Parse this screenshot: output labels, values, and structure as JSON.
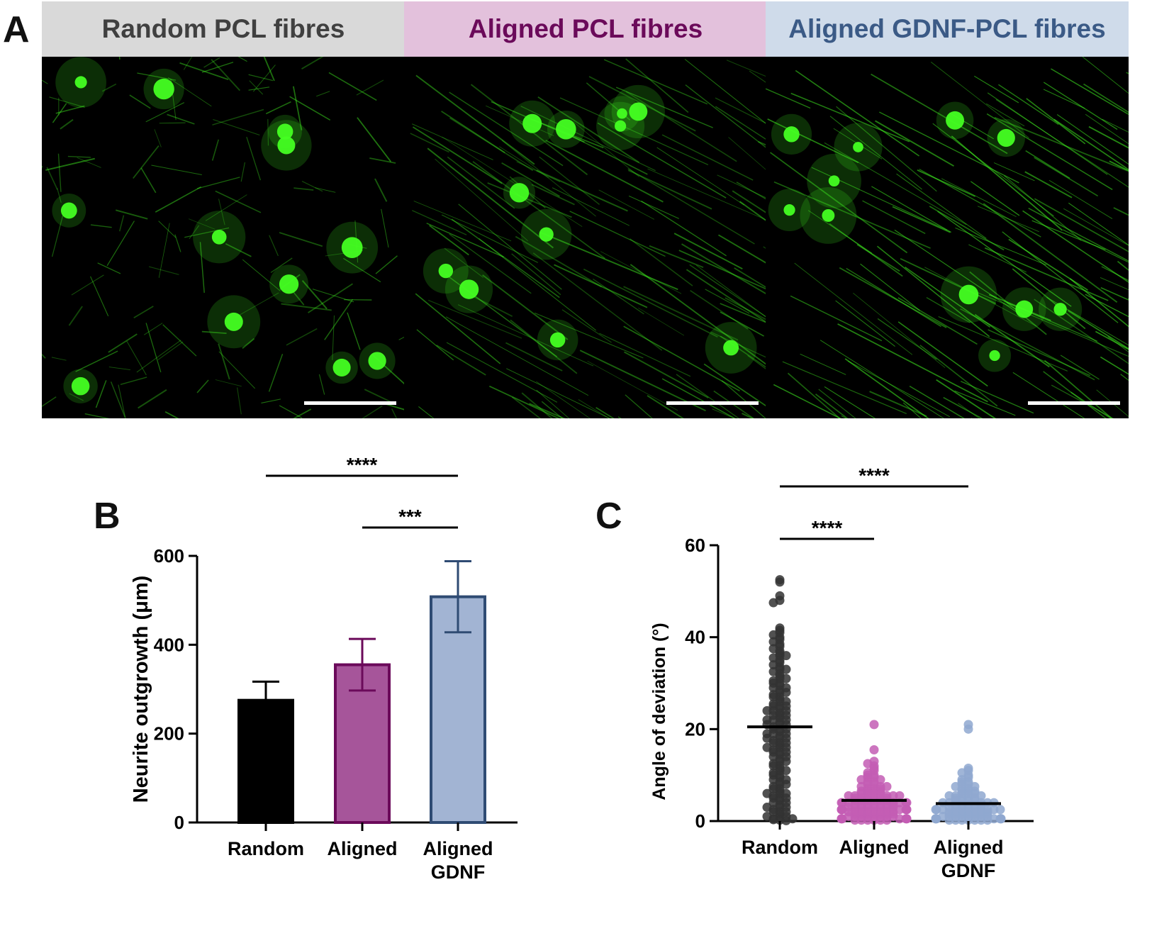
{
  "panel_a": {
    "letter": "A",
    "panels": [
      {
        "title": "Random PCL fibres",
        "header_color": "#d9d9d9",
        "title_color": "#404040"
      },
      {
        "title": "Aligned PCL fibres",
        "header_color": "#e3c1dc",
        "title_color": "#6b0a5a"
      },
      {
        "title": "Aligned GDNF-PCL fibres",
        "header_color": "#cfdbea",
        "title_color": "#3b5a86"
      }
    ],
    "image_fill_color": "#000000",
    "stain_color": "#44ff22"
  },
  "chart_data": [
    {
      "panel_letter": "B",
      "type": "bar",
      "categories": [
        "Random",
        "Aligned",
        "Aligned\nGDNF"
      ],
      "ylabel": "Neurite outgrowth (μm)",
      "ylim": [
        0,
        600
      ],
      "yticks": [
        "0",
        "200",
        "400",
        "600"
      ],
      "series": [
        {
          "values": [
            275,
            355,
            508
          ],
          "error": [
            42,
            58,
            80
          ],
          "fill": [
            "#000000",
            "#a6559a",
            "#a2b4d3"
          ],
          "stroke": [
            "#000000",
            "#6b0a5a",
            "#2f4b73"
          ]
        }
      ],
      "significance": [
        {
          "from": "Random",
          "to": "Aligned\nGDNF",
          "label": "****"
        },
        {
          "from": "Aligned",
          "to": "Aligned\nGDNF",
          "label": "***"
        }
      ]
    },
    {
      "panel_letter": "C",
      "type": "scatter",
      "categories": [
        "Random",
        "Aligned",
        "Aligned\nGDNF"
      ],
      "ylabel": "Angle of deviation (°)",
      "ylim": [
        0,
        60
      ],
      "yticks": [
        "0",
        "20",
        "40",
        "60"
      ],
      "series": [
        {
          "color": "#333333",
          "mean": 20.5,
          "values": [
            52.5,
            52,
            49,
            48,
            47.5,
            42,
            41.5,
            41,
            40.5,
            40,
            39.5,
            39,
            38.5,
            38,
            37.5,
            37,
            36.5,
            36,
            35.5,
            35,
            34.5,
            34,
            33.5,
            33,
            32.5,
            32,
            31.5,
            31,
            30.5,
            30,
            29.5,
            29,
            28.5,
            28,
            27.5,
            27,
            26.5,
            26,
            25.5,
            25,
            24.5,
            24,
            23.5,
            23,
            22.5,
            22,
            21.5,
            21,
            20.5,
            20,
            19.5,
            19,
            18.5,
            18,
            17.5,
            17,
            16.5,
            16,
            15.5,
            15,
            14.5,
            14,
            13.5,
            13,
            12.5,
            12,
            11.5,
            11,
            10.5,
            10,
            9.5,
            9,
            8.5,
            8,
            7.5,
            7,
            6.5,
            6,
            5.5,
            5,
            4.5,
            4,
            3.5,
            3,
            2.5,
            2,
            1.5,
            1,
            0.5,
            0.2,
            26,
            24,
            22,
            18,
            16,
            14,
            12,
            10,
            8,
            6,
            4,
            2,
            30,
            28,
            27,
            25,
            23,
            21,
            19,
            17,
            15,
            13,
            11,
            9,
            7,
            5,
            3,
            1,
            36,
            33,
            20,
            20,
            21,
            19,
            22,
            18,
            23,
            17,
            24,
            16,
            25,
            15,
            29,
            31,
            6,
            5,
            3,
            2,
            1,
            0.5,
            0.3,
            0.1
          ]
        },
        {
          "color": "#c35db4",
          "mean": 4.5,
          "values": [
            21,
            15.5,
            13,
            12.5,
            12,
            11.5,
            11,
            10.5,
            10,
            10,
            9.5,
            9.5,
            9,
            9,
            8.5,
            8.5,
            8,
            8,
            7.5,
            7.5,
            7.5,
            7,
            7,
            7,
            6.5,
            6.5,
            6.5,
            6.5,
            6,
            6,
            6,
            6,
            5.5,
            5.5,
            5.5,
            5.5,
            5.5,
            5,
            5,
            5,
            5,
            5,
            5,
            4.5,
            4.5,
            4.5,
            4.5,
            4.5,
            4.5,
            4,
            4,
            4,
            4,
            4,
            4,
            4,
            3.5,
            3.5,
            3.5,
            3.5,
            3.5,
            3.5,
            3.5,
            3,
            3,
            3,
            3,
            3,
            3,
            3,
            3,
            2.5,
            2.5,
            2.5,
            2.5,
            2.5,
            2.5,
            2.5,
            2,
            2,
            2,
            2,
            2,
            2,
            2,
            2,
            1.5,
            1.5,
            1.5,
            1.5,
            1.5,
            1.5,
            1.5,
            1,
            1,
            1,
            1,
            1,
            1,
            1,
            1,
            0.5,
            0.5,
            0.5,
            0.5,
            0.5,
            0.5,
            0.5,
            0.2,
            0.2,
            0.2,
            0.2,
            0.2,
            0.2
          ]
        },
        {
          "color": "#8fa8d0",
          "mean": 3.8,
          "values": [
            21,
            20,
            11.5,
            11,
            10.5,
            10,
            9.5,
            9,
            8.5,
            8.5,
            8,
            8,
            7.5,
            7.5,
            7,
            7,
            6.5,
            6.5,
            6.5,
            6,
            6,
            6,
            5.5,
            5.5,
            5.5,
            5,
            5,
            5,
            5,
            4.5,
            4.5,
            4.5,
            4.5,
            4,
            4,
            4,
            4,
            4,
            3.5,
            3.5,
            3.5,
            3.5,
            3.5,
            3,
            3,
            3,
            3,
            3,
            3,
            2.5,
            2.5,
            2.5,
            2.5,
            2.5,
            2.5,
            2,
            2,
            2,
            2,
            2,
            2,
            2,
            1.5,
            1.5,
            1.5,
            1.5,
            1.5,
            1.5,
            1.5,
            1,
            1,
            1,
            1,
            1,
            1,
            1,
            1,
            0.5,
            0.5,
            0.5,
            0.5,
            0.5,
            0.5,
            0.5,
            0.5,
            0.2,
            0.2,
            0.2,
            0.2,
            0.2,
            0.2,
            0.2
          ]
        }
      ],
      "significance": [
        {
          "from": "Random",
          "to": "Aligned\nGDNF",
          "label": "****"
        },
        {
          "from": "Random",
          "to": "Aligned",
          "label": "****"
        }
      ]
    }
  ]
}
